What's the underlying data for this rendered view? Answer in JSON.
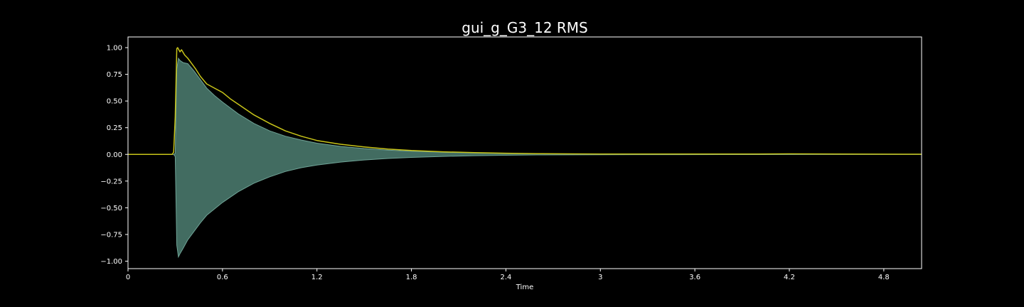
{
  "chart_data": {
    "type": "area",
    "title": "gui_g_G3_12 RMS",
    "xlabel": "Time",
    "ylabel": "",
    "xlim": [
      0,
      5.04
    ],
    "ylim": [
      -1.07,
      1.1
    ],
    "grid": false,
    "x_ticks": [
      {
        "value": 0,
        "label": "0"
      },
      {
        "value": 0.6,
        "label": "0.6"
      },
      {
        "value": 1.2,
        "label": "1.2"
      },
      {
        "value": 1.8,
        "label": "1.8"
      },
      {
        "value": 2.4,
        "label": "2.4"
      },
      {
        "value": 3.0,
        "label": "3"
      },
      {
        "value": 3.6,
        "label": "3.6"
      },
      {
        "value": 4.2,
        "label": "4.2"
      },
      {
        "value": 4.8,
        "label": "4.8"
      }
    ],
    "y_ticks": [
      {
        "value": 1.0,
        "label": "1.00"
      },
      {
        "value": 0.75,
        "label": "0.75"
      },
      {
        "value": 0.5,
        "label": "0.50"
      },
      {
        "value": 0.25,
        "label": "0.25"
      },
      {
        "value": 0.0,
        "label": "0.00"
      },
      {
        "value": -0.25,
        "label": "−0.25"
      },
      {
        "value": -0.5,
        "label": "−0.50"
      },
      {
        "value": -0.75,
        "label": "−0.75"
      },
      {
        "value": -1.0,
        "label": "−1.00"
      }
    ],
    "series": [
      {
        "kind": "waveform-envelope",
        "color": "#4e7f72",
        "edge_color": "#6fa396",
        "x": [
          0,
          0.29,
          0.3,
          0.31,
          0.32,
          0.33,
          0.35,
          0.38,
          0.42,
          0.46,
          0.5,
          0.55,
          0.6,
          0.7,
          0.8,
          0.9,
          1.0,
          1.1,
          1.2,
          1.35,
          1.5,
          1.65,
          1.8,
          2.0,
          2.2,
          2.4,
          2.6,
          2.8,
          3.0,
          3.5,
          4.0,
          4.5,
          5.04
        ],
        "upper": [
          0,
          0,
          0.01,
          0.8,
          0.9,
          0.88,
          0.86,
          0.85,
          0.78,
          0.7,
          0.62,
          0.55,
          0.49,
          0.38,
          0.29,
          0.22,
          0.17,
          0.135,
          0.105,
          0.075,
          0.055,
          0.04,
          0.03,
          0.02,
          0.013,
          0.009,
          0.006,
          0.004,
          0.003,
          0.002,
          0.0015,
          0.001,
          0.001
        ],
        "lower": [
          0,
          0,
          -0.02,
          -0.85,
          -0.96,
          -0.93,
          -0.88,
          -0.8,
          -0.72,
          -0.64,
          -0.57,
          -0.51,
          -0.45,
          -0.35,
          -0.27,
          -0.21,
          -0.16,
          -0.125,
          -0.1,
          -0.072,
          -0.052,
          -0.038,
          -0.028,
          -0.019,
          -0.012,
          -0.008,
          -0.005,
          -0.004,
          -0.003,
          -0.002,
          -0.0015,
          -0.001,
          -0.001
        ]
      },
      {
        "kind": "rms-line",
        "color": "#c8c419",
        "x": [
          0,
          0.28,
          0.29,
          0.3,
          0.31,
          0.315,
          0.33,
          0.34,
          0.36,
          0.38,
          0.4,
          0.43,
          0.46,
          0.5,
          0.55,
          0.6,
          0.65,
          0.7,
          0.8,
          0.9,
          1.0,
          1.1,
          1.2,
          1.35,
          1.5,
          1.65,
          1.8,
          2.0,
          2.2,
          2.4,
          2.6,
          2.8,
          3.0,
          3.5,
          4.0,
          4.2,
          4.5,
          5.04
        ],
        "y": [
          0,
          0,
          0.02,
          0.35,
          0.99,
          1.0,
          0.96,
          0.98,
          0.93,
          0.9,
          0.86,
          0.8,
          0.73,
          0.66,
          0.62,
          0.58,
          0.52,
          0.47,
          0.37,
          0.29,
          0.22,
          0.17,
          0.13,
          0.095,
          0.07,
          0.05,
          0.036,
          0.024,
          0.016,
          0.011,
          0.007,
          0.005,
          0.004,
          0.003,
          0.004,
          0.005,
          0.003,
          0.002
        ]
      }
    ]
  }
}
